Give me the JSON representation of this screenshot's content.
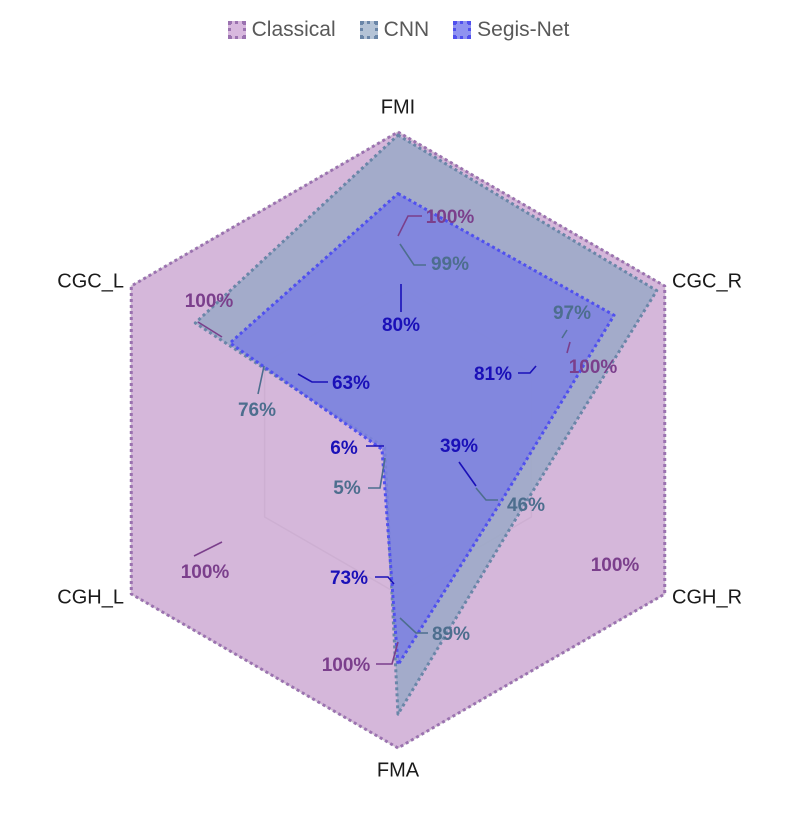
{
  "chart_data": {
    "type": "radar",
    "axes": [
      "FMI",
      "CGC_R",
      "CGH_R",
      "FMA",
      "CGH_L",
      "CGC_L"
    ],
    "range": [
      0,
      100
    ],
    "grid": true,
    "legend_position": "top",
    "series": [
      {
        "name": "Classical",
        "values": [
          100,
          100,
          100,
          100,
          100,
          100
        ],
        "labels": [
          "100%",
          "100%",
          "100%",
          "100%",
          "100%",
          "100%"
        ],
        "fill": "#c9a3cf",
        "stroke": "#9b72b0",
        "label_color": "#7b3f8c"
      },
      {
        "name": "CNN",
        "values": [
          99,
          97,
          46,
          89,
          5,
          76
        ],
        "labels": [
          "99%",
          "97%",
          "46%",
          "89%",
          "5%",
          "76%"
        ],
        "fill": "#9aa9c7",
        "stroke": "#6a86a8",
        "label_color": "#4d6e8e"
      },
      {
        "name": "Segis-Net",
        "values": [
          80,
          81,
          39,
          73,
          6,
          63
        ],
        "labels": [
          "80%",
          "81%",
          "39%",
          "73%",
          "6%",
          "63%"
        ],
        "fill": "#7b7fe2",
        "stroke": "#5050ee",
        "label_color": "#1a10b8"
      }
    ]
  }
}
